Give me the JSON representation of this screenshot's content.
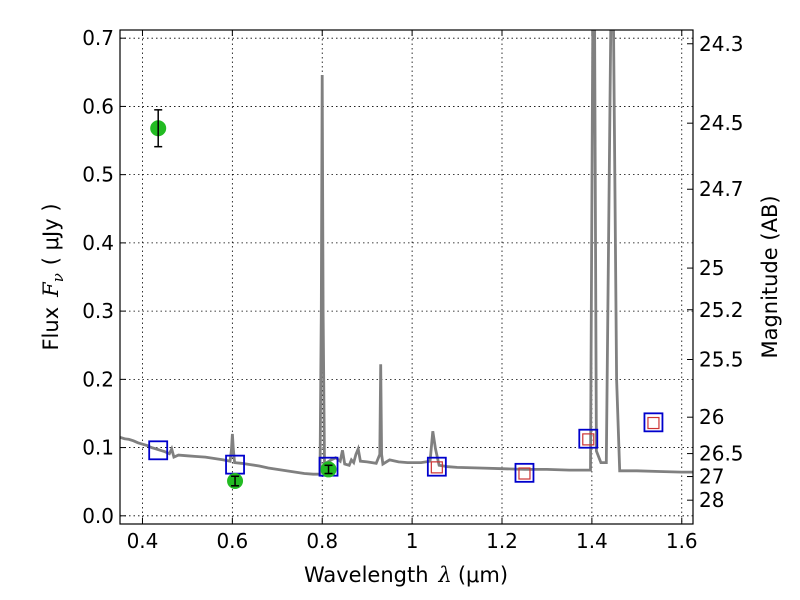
{
  "chart_data": {
    "type": "scatter",
    "xlabel": "Wavelength",
    "xlabel_symbol": "λ",
    "xlabel_unit": "(μm)",
    "ylabel": "Flux",
    "ylabel_symbol": "F",
    "ylabel_subscript": "ν",
    "ylabel_unit": "( μJy )",
    "ylabel_right": "Magnitude (AB)",
    "xlim": [
      0.35,
      1.625
    ],
    "ylim": [
      -0.012,
      0.712
    ],
    "grid": true,
    "x_ticks": [
      {
        "value": 0.4,
        "label": "0.4"
      },
      {
        "value": 0.6,
        "label": "0.6"
      },
      {
        "value": 0.8,
        "label": "0.8"
      },
      {
        "value": 1.0,
        "label": "1"
      },
      {
        "value": 1.2,
        "label": "1.2"
      },
      {
        "value": 1.4,
        "label": "1.4"
      },
      {
        "value": 1.6,
        "label": "1.6"
      }
    ],
    "y_ticks": [
      {
        "value": 0.0,
        "label": "0.0"
      },
      {
        "value": 0.1,
        "label": "0.1"
      },
      {
        "value": 0.2,
        "label": "0.2"
      },
      {
        "value": 0.3,
        "label": "0.3"
      },
      {
        "value": 0.4,
        "label": "0.4"
      },
      {
        "value": 0.5,
        "label": "0.5"
      },
      {
        "value": 0.6,
        "label": "0.6"
      },
      {
        "value": 0.7,
        "label": "0.7"
      }
    ],
    "right_ticks": [
      {
        "mag": 24.3,
        "label": "24.3"
      },
      {
        "mag": 24.5,
        "label": "24.5"
      },
      {
        "mag": 24.7,
        "label": "24.7"
      },
      {
        "mag": 25.0,
        "label": "25"
      },
      {
        "mag": 25.2,
        "label": "25.2"
      },
      {
        "mag": 25.5,
        "label": "25.5"
      },
      {
        "mag": 26.0,
        "label": "26"
      },
      {
        "mag": 26.5,
        "label": "26.5"
      },
      {
        "mag": 27.0,
        "label": "27"
      },
      {
        "mag": 28.0,
        "label": "28"
      }
    ],
    "observed": {
      "color": "#22bb22",
      "points": [
        {
          "x": 0.435,
          "y": 0.568,
          "err": 0.027
        },
        {
          "x": 0.606,
          "y": 0.051,
          "err": 0.007
        },
        {
          "x": 0.814,
          "y": 0.068,
          "err": 0.006
        }
      ]
    },
    "model_photometry": {
      "color": "#0000cc",
      "points": [
        {
          "x": 0.435,
          "y": 0.096
        },
        {
          "x": 0.606,
          "y": 0.075
        },
        {
          "x": 0.814,
          "y": 0.072
        },
        {
          "x": 1.055,
          "y": 0.072
        },
        {
          "x": 1.25,
          "y": 0.063
        },
        {
          "x": 1.392,
          "y": 0.113
        },
        {
          "x": 1.537,
          "y": 0.137
        }
      ]
    },
    "model_inner": {
      "color": "#cc3333",
      "points": [
        {
          "x": 1.055,
          "y": 0.071
        },
        {
          "x": 1.25,
          "y": 0.062
        },
        {
          "x": 1.392,
          "y": 0.112
        },
        {
          "x": 1.537,
          "y": 0.136
        }
      ]
    },
    "spectrum": {
      "color": "#808080",
      "points": [
        [
          0.35,
          0.115
        ],
        [
          0.36,
          0.113
        ],
        [
          0.37,
          0.112
        ],
        [
          0.38,
          0.11
        ],
        [
          0.39,
          0.107
        ],
        [
          0.4,
          0.105
        ],
        [
          0.41,
          0.103
        ],
        [
          0.42,
          0.1
        ],
        [
          0.43,
          0.098
        ],
        [
          0.44,
          0.096
        ],
        [
          0.45,
          0.094
        ],
        [
          0.46,
          0.091
        ],
        [
          0.465,
          0.098
        ],
        [
          0.47,
          0.086
        ],
        [
          0.48,
          0.089
        ],
        [
          0.5,
          0.088
        ],
        [
          0.52,
          0.087
        ],
        [
          0.54,
          0.086
        ],
        [
          0.56,
          0.084
        ],
        [
          0.58,
          0.082
        ],
        [
          0.595,
          0.08
        ],
        [
          0.598,
          0.098
        ],
        [
          0.6,
          0.12
        ],
        [
          0.602,
          0.098
        ],
        [
          0.605,
          0.078
        ],
        [
          0.62,
          0.077
        ],
        [
          0.64,
          0.075
        ],
        [
          0.66,
          0.073
        ],
        [
          0.68,
          0.07
        ],
        [
          0.7,
          0.068
        ],
        [
          0.72,
          0.066
        ],
        [
          0.74,
          0.064
        ],
        [
          0.76,
          0.062
        ],
        [
          0.78,
          0.061
        ],
        [
          0.795,
          0.061
        ],
        [
          0.798,
          0.3
        ],
        [
          0.8,
          0.646
        ],
        [
          0.802,
          0.3
        ],
        [
          0.805,
          0.075
        ],
        [
          0.81,
          0.078
        ],
        [
          0.82,
          0.082
        ],
        [
          0.83,
          0.085
        ],
        [
          0.84,
          0.08
        ],
        [
          0.845,
          0.096
        ],
        [
          0.85,
          0.076
        ],
        [
          0.86,
          0.074
        ],
        [
          0.865,
          0.082
        ],
        [
          0.87,
          0.078
        ],
        [
          0.875,
          0.09
        ],
        [
          0.88,
          0.098
        ],
        [
          0.885,
          0.08
        ],
        [
          0.9,
          0.079
        ],
        [
          0.92,
          0.077
        ],
        [
          0.928,
          0.09
        ],
        [
          0.93,
          0.222
        ],
        [
          0.932,
          0.09
        ],
        [
          0.935,
          0.076
        ],
        [
          0.95,
          0.082
        ],
        [
          0.97,
          0.079
        ],
        [
          0.99,
          0.078
        ],
        [
          1.0,
          0.078
        ],
        [
          1.02,
          0.078
        ],
        [
          1.04,
          0.08
        ],
        [
          1.046,
          0.124
        ],
        [
          1.052,
          0.098
        ],
        [
          1.06,
          0.074
        ],
        [
          1.08,
          0.072
        ],
        [
          1.1,
          0.071
        ],
        [
          1.15,
          0.07
        ],
        [
          1.2,
          0.069
        ],
        [
          1.25,
          0.068
        ],
        [
          1.3,
          0.068
        ],
        [
          1.35,
          0.067
        ],
        [
          1.39,
          0.067
        ],
        [
          1.397,
          0.067
        ],
        [
          1.402,
          0.72
        ],
        [
          1.406,
          0.72
        ],
        [
          1.41,
          0.095
        ],
        [
          1.42,
          0.078
        ],
        [
          1.432,
          0.078
        ],
        [
          1.442,
          0.72
        ],
        [
          1.448,
          0.72
        ],
        [
          1.455,
          0.2
        ],
        [
          1.462,
          0.066
        ],
        [
          1.5,
          0.066
        ],
        [
          1.55,
          0.065
        ],
        [
          1.6,
          0.064
        ],
        [
          1.625,
          0.064
        ]
      ]
    }
  }
}
